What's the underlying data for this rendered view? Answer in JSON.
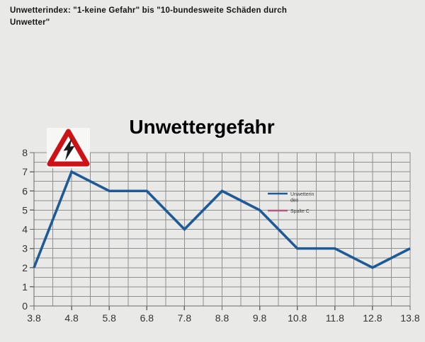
{
  "page": {
    "background": "#e9e9e8",
    "header_note": "Unwetterindex: \"1-keine Gefahr\" bis \"10-bundesweite Schäden durch Unwetter\""
  },
  "chart_data": {
    "type": "line",
    "title": "Unwettergefahr",
    "x": [
      3.8,
      4.8,
      5.8,
      6.8,
      7.8,
      8.8,
      9.8,
      10.8,
      11.8,
      12.8,
      13.8
    ],
    "x_tick_labels": [
      "3.8",
      "4.8",
      "5.8",
      "6.8",
      "7.8",
      "8.8",
      "9.8",
      "10.8",
      "11.8",
      "12.8",
      "13.8"
    ],
    "y_ticks": [
      "0",
      "1",
      "2",
      "3",
      "4",
      "5",
      "6",
      "7",
      "8"
    ],
    "ylim": [
      0,
      8
    ],
    "xlabel": "",
    "ylabel": "",
    "grid": {
      "on": true,
      "minor_step": 0.5,
      "color": "#8f8f8f"
    },
    "axis_color": "#6a6a6a",
    "tick_label_color": "#333333",
    "series": [
      {
        "name": "Unwetterindex",
        "legend_label_lines": [
          "Unwetterin",
          "dex"
        ],
        "color": "#1e5a96",
        "values": [
          2,
          7,
          6,
          6,
          4,
          6,
          5,
          3,
          3,
          2,
          3
        ]
      },
      {
        "name": "Spalte C",
        "legend_label_lines": [
          "Spalte C"
        ],
        "color": "#b05a7d",
        "values": []
      }
    ],
    "legend": {
      "position": "inside-right",
      "border": false
    },
    "icon": "storm-warning-triangle"
  }
}
